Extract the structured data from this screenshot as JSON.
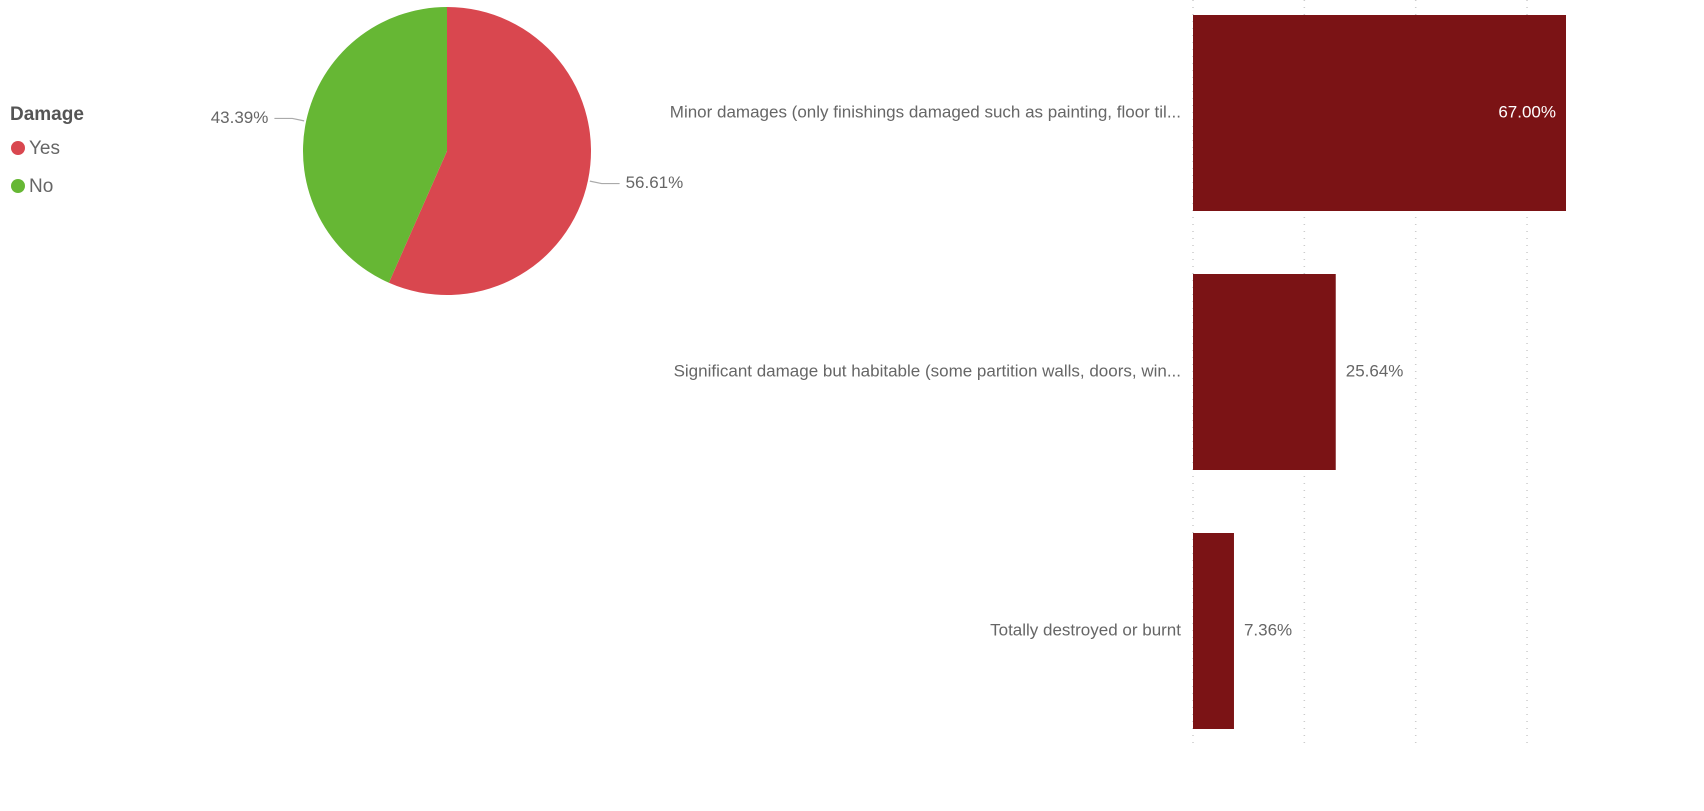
{
  "chart_data": [
    {
      "type": "pie",
      "legend_title": "Damage",
      "categories": [
        "Yes",
        "No"
      ],
      "values": [
        56.61,
        43.39
      ],
      "value_labels": [
        "56.61%",
        "43.39%"
      ],
      "colors": [
        "#d9474f",
        "#66b734"
      ],
      "legend": "left"
    },
    {
      "type": "hbar",
      "categories": [
        "Minor damages (only finishings damaged such as painting, floor til...",
        "Significant damage but habitable (some partition walls, doors, win...",
        "Totally destroyed or burnt"
      ],
      "values": [
        67.0,
        25.64,
        7.36
      ],
      "value_labels": [
        "67.00%",
        "25.64%",
        "7.36%"
      ],
      "color": "#7b1315",
      "xlim": [
        0,
        67
      ],
      "xticks": [
        0,
        20,
        40,
        60
      ],
      "grid": true
    }
  ]
}
